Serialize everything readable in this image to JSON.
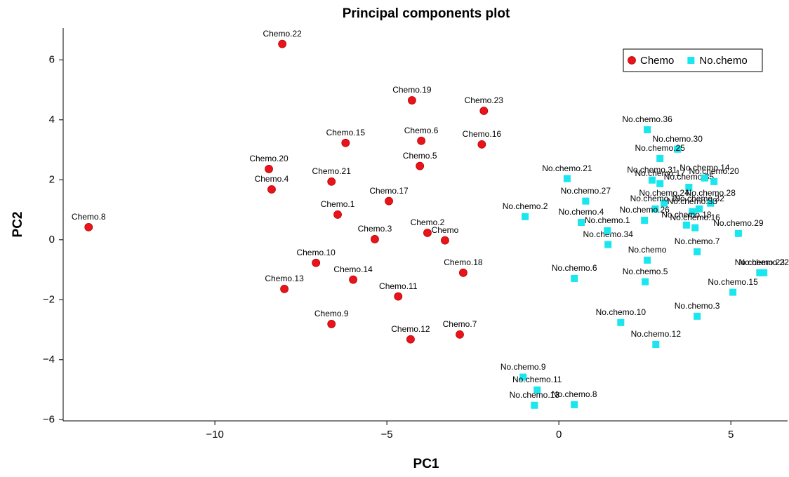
{
  "chart_data": {
    "type": "scatter",
    "title": "Principal components plot",
    "x_label": "PC1",
    "y_label": "PC2",
    "xlim": [
      -14.41,
      6.65
    ],
    "ylim": [
      -6.04,
      7.06
    ],
    "xticks": [
      {
        "value": -10,
        "label": "−10"
      },
      {
        "value": -5,
        "label": "−5"
      },
      0,
      5
    ],
    "yticks": [
      {
        "value": -6,
        "label": "−6"
      },
      {
        "value": -4,
        "label": "−4"
      },
      {
        "value": -2,
        "label": "−2"
      },
      0,
      2,
      4,
      6
    ],
    "legend": "top-right",
    "series": [
      {
        "name": "Chemo",
        "color": "#e8141b",
        "marker": "circle",
        "labels": [
          "Chemo.22",
          "Chemo.19",
          "Chemo.23",
          "Chemo.15",
          "Chemo.6",
          "Chemo.16",
          "Chemo.5",
          "Chemo.20",
          "Chemo.21",
          "Chemo.4",
          "Chemo.17",
          "Chemo.1",
          "Chemo.8",
          "Chemo.2",
          "Chemo",
          "Chemo.3",
          "Chemo.10",
          "Chemo.18",
          "Chemo.14",
          "Chemo.13",
          "Chemo.11",
          "Chemo.9",
          "Chemo.7",
          "Chemo.12"
        ],
        "x": [
          -8.04,
          -4.27,
          -2.18,
          -6.2,
          -4.0,
          -2.24,
          -4.04,
          -8.43,
          -6.61,
          -8.35,
          -4.94,
          -6.43,
          -13.67,
          -3.82,
          -3.31,
          -5.35,
          -7.06,
          -2.78,
          -5.98,
          -7.98,
          -4.67,
          -6.61,
          -2.88,
          -4.31
        ],
        "values": [
          6.53,
          4.65,
          4.3,
          3.23,
          3.3,
          3.18,
          2.46,
          2.36,
          1.94,
          1.68,
          1.29,
          0.84,
          0.42,
          0.23,
          -0.02,
          0.02,
          -0.77,
          -1.1,
          -1.33,
          -1.64,
          -1.89,
          -2.81,
          -3.16,
          -3.32
        ]
      },
      {
        "name": "No.chemo",
        "color": "#19e6ee",
        "marker": "square",
        "labels": [
          "No.chemo.36",
          "No.chemo.30",
          "No.chemo.25",
          "No.chemo.21",
          "No.chemo.31",
          "No.chemo.17",
          "No.chemo.35",
          "No.chemo.14",
          "No.chemo.20",
          "No.chemo.28",
          "No.chemo.32",
          "No.chemo.33",
          "No.chemo.24",
          "No.chemo.19",
          "No.chemo.26",
          "No.chemo.18",
          "No.chemo.16",
          "No.chemo.27",
          "No.chemo.2",
          "No.chemo.4",
          "No.chemo.34",
          "No.chemo.1",
          "No.chemo.29",
          "No.chemo",
          "No.chemo.7",
          "No.chemo.23",
          "No.chemo.22",
          "No.chemo.6",
          "No.chemo.5",
          "No.chemo.15",
          "No.chemo.3",
          "No.chemo.10",
          "No.chemo.12",
          "No.chemo.9",
          "No.chemo.11",
          "No.chemo.13",
          "No.chemo.8"
        ],
        "x": [
          2.57,
          3.45,
          2.94,
          0.24,
          2.71,
          2.94,
          3.78,
          4.24,
          4.51,
          4.41,
          4.08,
          3.88,
          3.06,
          2.8,
          2.49,
          3.71,
          3.96,
          0.78,
          -0.98,
          0.65,
          1.43,
          1.41,
          5.22,
          2.57,
          4.02,
          5.84,
          5.96,
          0.45,
          2.51,
          5.06,
          4.02,
          1.8,
          2.82,
          -1.04,
          -0.63,
          -0.71,
          0.45
        ],
        "values": [
          3.67,
          3.02,
          2.71,
          2.04,
          1.99,
          1.87,
          1.75,
          2.06,
          1.94,
          1.22,
          1.03,
          0.94,
          1.22,
          1.03,
          0.65,
          0.49,
          0.4,
          1.29,
          0.77,
          0.58,
          -0.16,
          0.3,
          0.21,
          -0.68,
          -0.4,
          -1.1,
          -1.1,
          -1.29,
          -1.4,
          -1.75,
          -2.55,
          -2.76,
          -3.49,
          -4.58,
          -5.01,
          -5.52,
          -5.5
        ]
      }
    ]
  }
}
